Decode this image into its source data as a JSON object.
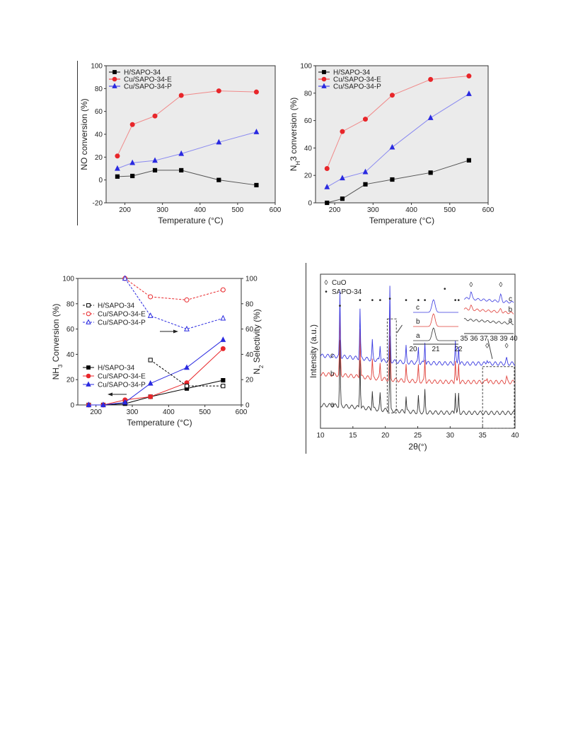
{
  "chart_data": [
    {
      "type": "line",
      "xlabel": "Temperature (°C)",
      "ylabel": "NO conversion (%)",
      "xlim": [
        150,
        600
      ],
      "ylim": [
        -20,
        100
      ],
      "xticks": [
        "200",
        "300",
        "400",
        "500",
        "600"
      ],
      "yticks": [
        "-20",
        "0",
        "20",
        "40",
        "60",
        "80",
        "100"
      ],
      "legend_position": "top-left",
      "series": [
        {
          "name": "H/SAPO-34",
          "color": "#000000",
          "marker": "square",
          "x": [
            180,
            220,
            280,
            350,
            450,
            550
          ],
          "y": [
            3,
            3.5,
            8.5,
            8.5,
            0,
            -4.5
          ]
        },
        {
          "name": "Cu/SAPO-34-E",
          "color": "#e8262a",
          "marker": "circle",
          "x": [
            180,
            220,
            280,
            350,
            450,
            550
          ],
          "y": [
            21,
            48.5,
            56,
            74,
            78,
            77
          ]
        },
        {
          "name": "Cu/SAPO-34-P",
          "color": "#2a2ae0",
          "marker": "triangle",
          "x": [
            180,
            220,
            280,
            350,
            450,
            550
          ],
          "y": [
            10,
            15,
            17,
            23,
            33,
            42
          ]
        }
      ]
    },
    {
      "type": "line",
      "xlabel": "Temperature (°C)",
      "ylabel": "NH3 conversion (%)",
      "xlim": [
        150,
        600
      ],
      "ylim": [
        0,
        100
      ],
      "xticks": [
        "200",
        "300",
        "400",
        "500",
        "600"
      ],
      "yticks": [
        "0",
        "20",
        "40",
        "60",
        "80",
        "100"
      ],
      "legend_position": "top-left",
      "series": [
        {
          "name": "H/SAPO-34",
          "color": "#000000",
          "marker": "square",
          "x": [
            180,
            220,
            280,
            350,
            450,
            550
          ],
          "y": [
            0,
            3,
            13.5,
            17,
            22,
            31
          ]
        },
        {
          "name": "Cu/SAPO-34-E",
          "color": "#e8262a",
          "marker": "circle",
          "x": [
            180,
            220,
            280,
            350,
            450,
            550
          ],
          "y": [
            25,
            52,
            61,
            78.5,
            90,
            92.5
          ]
        },
        {
          "name": "Cu/SAPO-34-P",
          "color": "#2a2ae0",
          "marker": "triangle",
          "x": [
            180,
            220,
            280,
            350,
            450,
            550
          ],
          "y": [
            11.5,
            18,
            22.5,
            40.5,
            62,
            79.5
          ]
        }
      ]
    },
    {
      "type": "line",
      "xlabel": "Temperature (°C)",
      "ylabel": "NH3 Conversion (%)",
      "y2label": "N2 Selectivity (%)",
      "xlim": [
        150,
        600
      ],
      "ylim": [
        0,
        100
      ],
      "y2lim": [
        0,
        100
      ],
      "xticks": [
        "200",
        "300",
        "400",
        "500",
        "600"
      ],
      "yticks": [
        "0",
        "20",
        "40",
        "60",
        "80",
        "100"
      ],
      "y2ticks": [
        "0",
        "20",
        "40",
        "60",
        "80",
        "100"
      ],
      "series": [
        {
          "name": "H/SAPO-34",
          "axis": "left",
          "color": "#000000",
          "marker": "square",
          "x": [
            180,
            220,
            280,
            350,
            450,
            550
          ],
          "y": [
            0,
            0,
            1,
            6.5,
            13,
            19.5
          ]
        },
        {
          "name": "Cu/SAPO-34-E",
          "axis": "left",
          "color": "#e8262a",
          "marker": "circle",
          "x": [
            180,
            220,
            280,
            350,
            450,
            550
          ],
          "y": [
            0,
            0,
            4,
            6.5,
            17.5,
            44.5
          ]
        },
        {
          "name": "Cu/SAPO-34-P",
          "axis": "left",
          "color": "#2a2ae0",
          "marker": "triangle",
          "x": [
            180,
            220,
            280,
            350,
            450,
            550
          ],
          "y": [
            0,
            0,
            2,
            17,
            29.5,
            51.5
          ]
        },
        {
          "name": "H/SAPO-34",
          "axis": "right",
          "dashed": true,
          "hollow": true,
          "color": "#000000",
          "marker": "square",
          "x": [
            350,
            450,
            550
          ],
          "y": [
            35.5,
            15,
            15
          ]
        },
        {
          "name": "Cu/SAPO-34-E",
          "axis": "right",
          "dashed": true,
          "hollow": true,
          "color": "#e8262a",
          "marker": "circle",
          "x": [
            280,
            350,
            450,
            550
          ],
          "y": [
            100,
            85.5,
            83,
            91
          ]
        },
        {
          "name": "Cu/SAPO-34-P",
          "axis": "right",
          "dashed": true,
          "hollow": true,
          "color": "#2a2ae0",
          "marker": "triangle",
          "x": [
            280,
            350,
            450,
            550
          ],
          "y": [
            100,
            70.5,
            60,
            68.5
          ]
        }
      ]
    },
    {
      "type": "line",
      "xlabel": "2θ(°)",
      "ylabel": "Intensity (a.u.)",
      "xlim": [
        10,
        40
      ],
      "xticks": [
        "10",
        "15",
        "20",
        "25",
        "30",
        "35",
        "40"
      ],
      "legend": [
        {
          "symbol": "◊",
          "label": "CuO"
        },
        {
          "symbol": "•",
          "label": "SAPO-34"
        }
      ],
      "series": [
        {
          "name": "a",
          "color": "#333333",
          "baseline": 0.1
        },
        {
          "name": "b",
          "color": "#e0403a",
          "baseline": 0.3
        },
        {
          "name": "c",
          "color": "#3a3ae0",
          "baseline": 0.42
        }
      ],
      "sapo34_peaks": [
        13,
        16.1,
        18,
        19.2,
        20.7,
        23.2,
        25.1,
        26.1,
        30.8,
        31.3
      ],
      "cuo_peaks": [
        35.7,
        38.7
      ],
      "inset1": {
        "xticks": [
          "20",
          "21",
          "22"
        ],
        "labels": [
          "c",
          "b",
          "a"
        ]
      },
      "inset2": {
        "xticks": [
          "35",
          "36",
          "37",
          "38",
          "39",
          "40"
        ],
        "labels": [
          "c",
          "b",
          "a"
        ]
      }
    }
  ]
}
